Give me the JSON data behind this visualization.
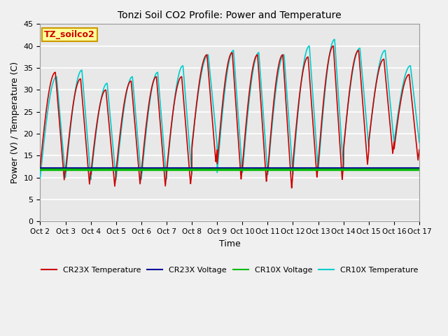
{
  "title": "Tonzi Soil CO2 Profile: Power and Temperature",
  "xlabel": "Time",
  "ylabel": "Power (V) / Temperature (C)",
  "xlim": [
    0,
    15
  ],
  "ylim": [
    0,
    45
  ],
  "yticks": [
    0,
    5,
    10,
    15,
    20,
    25,
    30,
    35,
    40,
    45
  ],
  "xtick_labels": [
    "Oct 2",
    "Oct 3",
    "Oct 4",
    "Oct 5",
    "Oct 6",
    "Oct 7",
    "Oct 8",
    "Oct 9",
    "Oct 10",
    "Oct 11",
    "Oct 12",
    "Oct 13",
    "Oct 14",
    "Oct 15",
    "Oct 16",
    "Oct 17"
  ],
  "box_label": "TZ_soilco2",
  "box_color": "#FFFF99",
  "box_border": "#CC9900",
  "plot_bg_color": "#E8E8E8",
  "fig_bg_color": "#F0F0F0",
  "grid_color": "#FFFFFF",
  "cr23x_temp_color": "#CC0000",
  "cr23x_volt_color": "#000099",
  "cr10x_volt_color": "#00BB00",
  "cr10x_temp_color": "#00CCCC",
  "cr10x_volt_value": 11.8,
  "cr23x_volt_value": 12.2,
  "legend_labels": [
    "CR23X Temperature",
    "CR23X Voltage",
    "CR10X Voltage",
    "CR10X Temperature"
  ]
}
